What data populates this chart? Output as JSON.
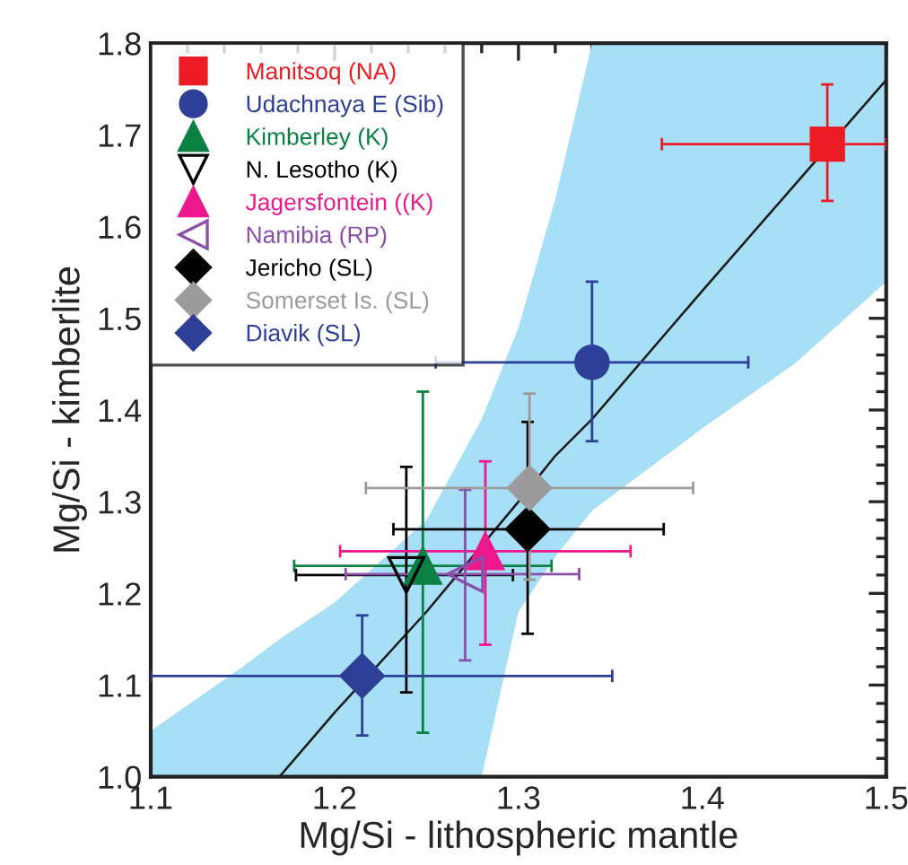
{
  "chart_data": {
    "type": "scatter",
    "xlabel": "Mg/Si - lithospheric mantle",
    "ylabel": "Mg/Si - kimberlite",
    "xlim": [
      1.1,
      1.5
    ],
    "ylim": [
      1.0,
      1.8
    ],
    "xticks": [
      1.1,
      1.2,
      1.3,
      1.4,
      1.5
    ],
    "yticks": [
      {
        "value": 1.0,
        "label": "1.0"
      },
      1.1,
      1.2,
      1.3,
      1.4,
      1.5,
      1.6,
      1.7,
      1.8
    ],
    "grid": false,
    "legend": "top left",
    "series": [
      {
        "type": "line",
        "color": "#1a1a1a",
        "colors": [
          "#a7dff6",
          "#a7dff6",
          "#a7dff6",
          "#a7dff6",
          "#a7dff6",
          "#a7dff6",
          "#a7dff6",
          "#a7dff6",
          "#a7dff6",
          "#a7dff6",
          "#a7dff6",
          "#a7dff6"
        ],
        "marker": "none",
        "line_style": "solid",
        "x": [
          1.1,
          1.15,
          1.17,
          1.2,
          1.25,
          1.28,
          1.3,
          1.32,
          1.34,
          1.4,
          1.45,
          1.5
        ],
        "values": [
          null,
          null,
          1.0,
          1.07,
          1.18,
          null,
          1.3,
          1.35,
          1.39,
          1.53,
          1.645,
          1.76
        ],
        "lower": [
          1.0,
          1.0,
          1.0,
          1.0,
          1.0,
          1.0,
          1.18,
          1.24,
          1.29,
          1.38,
          1.45,
          1.54
        ],
        "upper": [
          1.05,
          1.12,
          1.15,
          1.19,
          1.28,
          1.39,
          1.49,
          1.63,
          1.8,
          1.8,
          1.8,
          1.8
        ]
      },
      {
        "name": "Manitsoq (NA)",
        "color": "#ed1c24",
        "marker": "square",
        "x": [
          1.468
        ],
        "values": [
          1.69
        ],
        "xerrors": [
          [
            1.378,
            1.5
          ]
        ],
        "errors": [
          [
            1.628,
            1.755
          ]
        ]
      },
      {
        "name": "Udachnaya E (Sib)",
        "color": "#2e3f97",
        "marker": "circle",
        "x": [
          1.34
        ],
        "values": [
          1.452
        ],
        "xerrors": [
          [
            1.255,
            1.425
          ]
        ],
        "errors": [
          [
            1.366,
            1.54
          ]
        ]
      },
      {
        "name": "Kimberley (K)",
        "color": "#0b8043",
        "marker": "triangle",
        "x": [
          1.248
        ],
        "values": [
          1.23
        ],
        "xerrors": [
          [
            1.178,
            1.318
          ]
        ],
        "errors": [
          [
            1.048,
            1.42
          ]
        ]
      },
      {
        "name": "N. Lesotho (K)",
        "color": "#000000",
        "marker": "triangle-down-open",
        "x": [
          1.239
        ],
        "values": [
          1.22
        ],
        "xerrors": [
          [
            1.179,
            1.297
          ]
        ],
        "errors": [
          [
            1.092,
            1.338
          ]
        ]
      },
      {
        "name": "Jagersfontein ((K)",
        "color": "#ec188c",
        "marker": "triangle",
        "x": [
          1.282
        ],
        "values": [
          1.246
        ],
        "xerrors": [
          [
            1.203,
            1.361
          ]
        ],
        "errors": [
          [
            1.144,
            1.344
          ]
        ]
      },
      {
        "name": "Namibia (RP)",
        "color": "#8a4fa8",
        "marker": "triangle-left-open",
        "x": [
          1.271
        ],
        "values": [
          1.221
        ],
        "xerrors": [
          [
            1.206,
            1.333
          ]
        ],
        "errors": [
          [
            1.127,
            1.313
          ]
        ]
      },
      {
        "name": "Jericho (SL)",
        "color": "#000000",
        "marker": "diamond",
        "x": [
          1.305
        ],
        "values": [
          1.27
        ],
        "xerrors": [
          [
            1.232,
            1.379
          ]
        ],
        "errors": [
          [
            1.156,
            1.387
          ]
        ]
      },
      {
        "name": "Somerset Is. (SL)",
        "color": "#9b9b9b",
        "marker": "diamond",
        "x": [
          1.306
        ],
        "values": [
          1.315
        ],
        "xerrors": [
          [
            1.217,
            1.395
          ]
        ],
        "errors": [
          [
            1.215,
            1.418
          ]
        ]
      },
      {
        "name": "Diavik (SL)",
        "color": "#2e3f97",
        "marker": "diamond",
        "x": [
          1.215
        ],
        "values": [
          1.11
        ],
        "xerrors": [
          [
            1.1,
            1.351
          ]
        ],
        "errors": [
          [
            1.045,
            1.176
          ]
        ]
      }
    ]
  }
}
